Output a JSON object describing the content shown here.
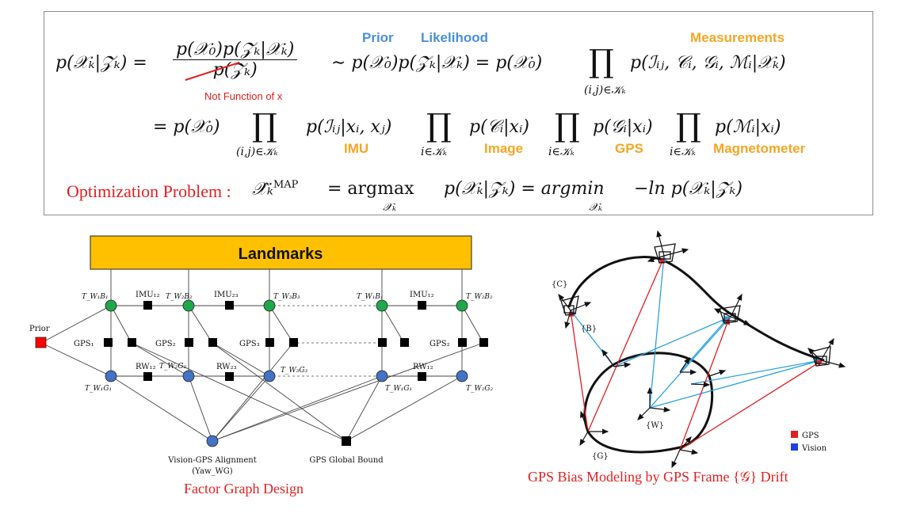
{
  "equation": {
    "line1_lhs": "p(𝒳ₖ|𝒵ₖ) =",
    "fraction_numerator": "p(𝒳₀)p(𝒵ₖ|𝒳ₖ)",
    "fraction_denominator": "p(𝒵ₖ)",
    "line1_mid": "∼ p(𝒳₀)p(𝒵ₖ|𝒳ₖ) = p(𝒳₀)",
    "line1_prod_sub": "(i,j)∈𝒦ₖ",
    "line1_rhs": "p(ℐᵢⱼ, 𝒞ᵢ, 𝒢ᵢ, ℳᵢ|𝒳ₖ)",
    "line2_start": "= p(𝒳₀)",
    "line2_term1": "p(ℐᵢⱼ|xᵢ, xⱼ)",
    "line2_term2": "p(𝒞ᵢ|xᵢ)",
    "line2_term3": "p(𝒢ᵢ|xᵢ)",
    "line2_term4": "p(ℳᵢ|xᵢ)",
    "line2_sub_ij": "(i,j)∈𝒦ₖ",
    "line2_sub_i": "i∈𝒦ₖ",
    "line3_label": "Optimization Problem :",
    "line3_lhs": "𝒳̂ₖ",
    "line3_sup": "MAP",
    "line3_eq1": "= argmax",
    "line3_mid": "p(𝒳ₖ|𝒵ₖ) = argmin",
    "line3_rhs": "−ln p(𝒳ₖ|𝒵ₖ)",
    "line3_sub": "𝒳ₖ"
  },
  "annotations": {
    "prior": "Prior",
    "likelihood": "Likelihood",
    "measurements": "Measurements",
    "not_function": "Not Function of x",
    "imu": "IMU",
    "image": "Image",
    "gps": "GPS",
    "magnetometer": "Magnetometer"
  },
  "factor_graph": {
    "landmarks": "Landmarks",
    "prior": "Prior",
    "imu12": "IMU₁₂",
    "imu23": "IMU₂₃",
    "gps1": "GPS₁",
    "gps2": "GPS₂",
    "gps3": "GPS₃",
    "rw12": "RW₁₂",
    "rw23": "RW₂₃",
    "twb1": "T_W₁B₁",
    "twb2": "T_W₂B₂",
    "twb3": "T_W₃B₃",
    "twg1": "T_W₁G₁",
    "twg2": "T_W₂G₂",
    "twg3": "T_W₃G₃",
    "alignment_line1": "Vision-GPS Alignment",
    "alignment_line2": "(Yaw_WG)",
    "global_bound": "GPS Global Bound",
    "caption": "Factor Graph Design",
    "colors": {
      "landmarks": "#ffc000",
      "pose": "#1fa84a",
      "gps_frame": "#4472c4",
      "prior": "#ff0000",
      "factor": "#000000"
    }
  },
  "bias_diagram": {
    "frame_c": "{C}",
    "frame_b": "{B}",
    "frame_w": "{W}",
    "frame_g": "{G}",
    "legend_gps": "GPS",
    "legend_vision": "Vision",
    "caption": "GPS Bias Modeling by GPS Frame {𝒢} Drift",
    "colors": {
      "gps": "#e02020",
      "vision": "#29a3e0"
    }
  }
}
